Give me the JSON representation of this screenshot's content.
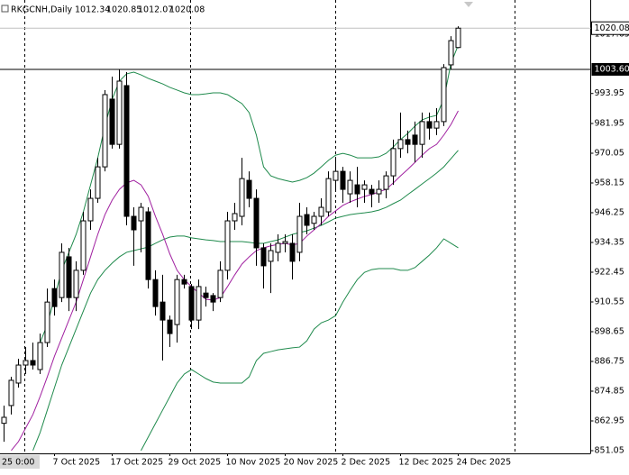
{
  "chart_data": {
    "type": "candlestick",
    "title": "RKGCNH,Daily",
    "time_cursor_label": "25 0:00",
    "categories": [
      null,
      null,
      null,
      null,
      null,
      null,
      null,
      "7 Oct 2025",
      null,
      null,
      null,
      null,
      null,
      null,
      null,
      "17 Oct 2025",
      null,
      null,
      null,
      null,
      null,
      null,
      null,
      "29 Oct 2025",
      null,
      null,
      null,
      null,
      null,
      null,
      null,
      "10 Nov 2025",
      null,
      null,
      null,
      null,
      null,
      null,
      null,
      "20 Nov 2025",
      null,
      null,
      null,
      null,
      null,
      null,
      null,
      "2 Dec 2025",
      null,
      null,
      null,
      null,
      null,
      null,
      null,
      "12 Dec 2025",
      null,
      null,
      null,
      null,
      null,
      null,
      null,
      "24 Dec 2025"
    ],
    "open": [
      862.0,
      869.1,
      878.1,
      885.3,
      887.1,
      883.5,
      894.3,
      915.9,
      912.3,
      928.6,
      912.3,
      923.2,
      943.0,
      952.0,
      964.6,
      991.7,
      973.6,
      997.1,
      944.8,
      943.0,
      946.6,
      919.5,
      910.5,
      903.3,
      901.5,
      919.5,
      916.7,
      903.3,
      914.1,
      913.1,
      912.3,
      923.2,
      943.0,
      944.8,
      959.2,
      952.0,
      932.2,
      926.8,
      930.4,
      934.0,
      934.0,
      930.4,
      945.5,
      942.0,
      944.8,
      946.6,
      959.2,
      962.8,
      953.8,
      957.4,
      955.6,
      955.6,
      953.8,
      955.6,
      961.0,
      971.9,
      975.5,
      977.3,
      973.6,
      982.7,
      980.1,
      982.7,
      1005.4,
      1012.34
    ],
    "high": [
      869.1,
      880.6,
      887.8,
      892.5,
      894.3,
      897.9,
      915.9,
      919.5,
      934.0,
      932.2,
      926.8,
      946.6,
      955.6,
      968.2,
      995.3,
      1000.7,
      1003.6,
      1002.5,
      948.4,
      950.2,
      948.4,
      923.2,
      921.4,
      905.1,
      921.4,
      921.4,
      917.7,
      919.5,
      916.7,
      914.1,
      926.8,
      946.6,
      950.2,
      968.2,
      962.8,
      955.6,
      934.0,
      934.0,
      937.6,
      937.6,
      937.6,
      950.2,
      948.4,
      946.6,
      952.0,
      962.8,
      968.2,
      964.6,
      962.8,
      964.6,
      959.2,
      957.4,
      959.2,
      962.8,
      975.5,
      986.3,
      979.1,
      982.7,
      986.3,
      986.3,
      988.1,
      1005.7,
      1016.9,
      1020.85
    ],
    "low": [
      854.6,
      865.5,
      876.3,
      881.7,
      883.5,
      881.7,
      892.5,
      905.1,
      910.5,
      906.9,
      906.9,
      921.4,
      939.4,
      950.2,
      962.8,
      971.9,
      971.9,
      941.2,
      925.0,
      930.4,
      915.9,
      905.1,
      887.1,
      892.5,
      894.3,
      915.9,
      899.7,
      899.7,
      908.7,
      906.9,
      910.5,
      919.5,
      939.4,
      941.2,
      948.4,
      925.0,
      915.9,
      914.1,
      926.8,
      930.4,
      919.5,
      926.8,
      937.6,
      939.4,
      941.2,
      944.8,
      955.6,
      950.2,
      950.2,
      948.4,
      950.2,
      948.4,
      950.2,
      952.0,
      957.4,
      968.2,
      970.0,
      966.4,
      968.2,
      975.5,
      977.3,
      980.9,
      1003.6,
      1012.07
    ],
    "close": [
      864.4,
      879.2,
      885.3,
      887.1,
      885.3,
      894.3,
      910.5,
      908.7,
      930.4,
      912.3,
      923.2,
      943.0,
      952.0,
      964.6,
      993.5,
      973.6,
      998.9,
      944.8,
      939.4,
      948.4,
      919.5,
      908.7,
      903.3,
      897.9,
      919.5,
      917.7,
      903.3,
      916.7,
      912.3,
      910.5,
      923.2,
      943.0,
      945.9,
      959.9,
      952.0,
      932.2,
      925.0,
      931.1,
      934.0,
      934.7,
      926.8,
      944.8,
      941.2,
      944.8,
      948.4,
      959.9,
      962.8,
      955.6,
      959.2,
      953.8,
      957.4,
      953.8,
      955.6,
      961.0,
      971.9,
      975.5,
      973.6,
      973.6,
      982.7,
      980.1,
      982.7,
      1004.3,
      1015.1,
      1020.08
    ],
    "bull_color": "#ffffff",
    "bear_color": "#000000",
    "overlays": [
      {
        "color": "#1f8a4c",
        "values": [
          null,
          null,
          null,
          null,
          null,
          894.3,
          901.5,
          912.3,
          923.2,
          930.4,
          937.6,
          946.6,
          957.4,
          968.2,
          980.9,
          991.7,
          998.9,
          1001.8,
          1002.5,
          1001.4,
          1000.0,
          998.9,
          997.8,
          996.4,
          995.3,
          994.2,
          993.5,
          993.5,
          993.8,
          994.2,
          994.2,
          993.5,
          991.7,
          989.9,
          986.3,
          977.3,
          964.6,
          961.0,
          959.9,
          959.2,
          958.5,
          959.2,
          960.3,
          962.1,
          964.6,
          967.2,
          969.3,
          970.0,
          969.3,
          968.2,
          968.2,
          968.2,
          968.6,
          970.0,
          972.6,
          975.5,
          978.0,
          980.9,
          983.4,
          984.5,
          985.2,
          991.7,
          1006.1,
          1013.3
        ]
      },
      {
        "color": "#1f8a4c",
        "values": [
          null,
          null,
          null,
          null,
          851.1,
          858.3,
          867.3,
          876.3,
          885.3,
          892.5,
          899.7,
          906.9,
          914.1,
          919.5,
          923.2,
          926.1,
          928.6,
          930.4,
          931.1,
          931.8,
          932.5,
          934.0,
          935.4,
          936.5,
          936.9,
          936.9,
          936.2,
          935.8,
          935.4,
          935.1,
          934.7,
          934.7,
          934.7,
          934.7,
          934.4,
          934.0,
          934.0,
          934.7,
          935.4,
          936.5,
          937.6,
          938.3,
          939.0,
          940.1,
          941.2,
          942.6,
          944.1,
          944.8,
          945.5,
          945.9,
          946.2,
          946.6,
          947.3,
          948.4,
          949.9,
          951.3,
          953.5,
          955.6,
          957.8,
          959.9,
          962.1,
          964.6,
          967.9,
          971.2
        ]
      },
      {
        "color": "#1f8a4c",
        "values": [
          null,
          null,
          null,
          null,
          null,
          null,
          null,
          null,
          null,
          null,
          null,
          null,
          null,
          null,
          null,
          null,
          null,
          null,
          null,
          851.1,
          856.5,
          861.9,
          867.3,
          872.7,
          878.1,
          881.7,
          883.5,
          881.7,
          879.9,
          878.5,
          878.1,
          878.1,
          878.1,
          878.1,
          880.6,
          887.1,
          890.0,
          890.7,
          891.4,
          891.8,
          892.2,
          892.5,
          895.0,
          899.7,
          902.2,
          903.3,
          905.1,
          910.5,
          915.2,
          919.5,
          922.4,
          923.5,
          923.9,
          923.9,
          923.9,
          923.2,
          923.2,
          924.3,
          926.8,
          929.3,
          932.2,
          935.8,
          934.0,
          932.2
        ]
      },
      {
        "color": "#a020a0",
        "values": [
          null,
          851.1,
          854.7,
          860.1,
          865.5,
          872.7,
          880.6,
          888.9,
          896.1,
          903.3,
          910.5,
          919.5,
          928.6,
          937.6,
          945.5,
          951.3,
          955.6,
          958.2,
          959.2,
          957.4,
          952.8,
          944.8,
          937.6,
          929.7,
          923.2,
          919.5,
          916.7,
          914.1,
          911.6,
          911.3,
          912.3,
          916.7,
          921.4,
          925.7,
          928.6,
          931.1,
          932.2,
          933.0,
          933.6,
          934.0,
          933.3,
          934.0,
          936.9,
          939.4,
          941.9,
          944.8,
          947.0,
          949.2,
          950.6,
          951.7,
          952.8,
          953.5,
          954.6,
          955.6,
          958.2,
          961.0,
          963.6,
          966.4,
          969.3,
          971.9,
          973.6,
          977.3,
          981.6,
          987.0
        ]
      }
    ],
    "hline": {
      "value": 1003.6,
      "label": "1003.60"
    },
    "ylim": [
      849.97,
      1031.35
    ],
    "yticks": [
      851.05,
      862.95,
      874.85,
      886.75,
      898.65,
      910.55,
      922.45,
      934.35,
      946.25,
      958.15,
      970.05,
      981.95,
      993.95,
      1017.65
    ]
  }
}
